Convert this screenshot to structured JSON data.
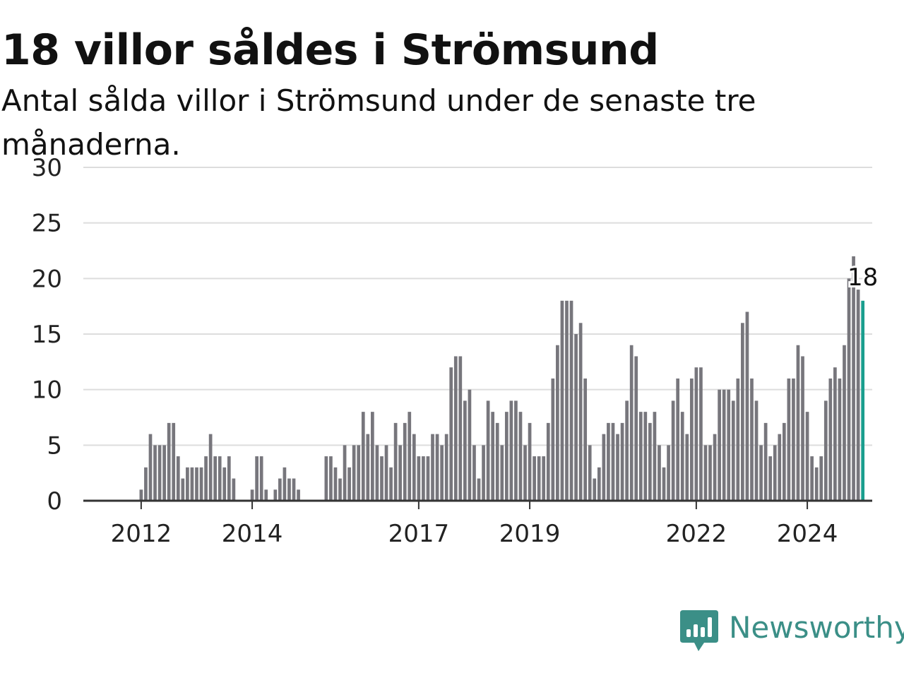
{
  "title": "18 villor såldes i Strömsund",
  "subtitle": "Antal sålda villor i Strömsund under de senaste tre månaderna.",
  "brand": {
    "name": "Newsworthy",
    "icon": "newsworthy-logo-icon",
    "color": "#3b8f87"
  },
  "colors": {
    "bar": "#77767c",
    "highlight": "#1a9e8e",
    "grid": "#dddddd",
    "axis": "#333333"
  },
  "chart_data": {
    "type": "bar",
    "x_start": "2011-01",
    "frequency": "monthly",
    "values": [
      0,
      0,
      0,
      0,
      0,
      0,
      0,
      0,
      0,
      0,
      0,
      0,
      1,
      3,
      6,
      5,
      5,
      5,
      7,
      7,
      4,
      2,
      3,
      3,
      3,
      3,
      4,
      6,
      4,
      4,
      3,
      4,
      2,
      0,
      0,
      0,
      1,
      4,
      4,
      1,
      0,
      1,
      2,
      3,
      2,
      2,
      1,
      0,
      0,
      0,
      0,
      0,
      4,
      4,
      3,
      2,
      5,
      3,
      5,
      5,
      8,
      6,
      8,
      5,
      4,
      5,
      3,
      7,
      5,
      7,
      8,
      6,
      4,
      4,
      4,
      6,
      6,
      5,
      6,
      12,
      13,
      13,
      9,
      10,
      5,
      2,
      5,
      9,
      8,
      7,
      5,
      8,
      9,
      9,
      8,
      5,
      7,
      4,
      4,
      4,
      7,
      11,
      14,
      18,
      18,
      18,
      15,
      16,
      11,
      5,
      2,
      3,
      6,
      7,
      7,
      6,
      7,
      9,
      14,
      13,
      8,
      8,
      7,
      8,
      5,
      3,
      5,
      9,
      11,
      8,
      6,
      11,
      12,
      12,
      5,
      5,
      6,
      10,
      10,
      10,
      9,
      11,
      16,
      17,
      11,
      9,
      5,
      7,
      4,
      5,
      6,
      7,
      11,
      11,
      14,
      13,
      8,
      4,
      3,
      4,
      9,
      11,
      12,
      11,
      14,
      20,
      22,
      19,
      18
    ],
    "highlight_last": true,
    "annotation": {
      "label": "18"
    },
    "y_ticks": [
      "0",
      "5",
      "10",
      "15",
      "20",
      "25",
      "30"
    ],
    "ylim": [
      0,
      30
    ],
    "x_ticks": [
      {
        "label": "2012",
        "year": 2012
      },
      {
        "label": "2014",
        "year": 2014
      },
      {
        "label": "2017",
        "year": 2017
      },
      {
        "label": "2019",
        "year": 2019
      },
      {
        "label": "2022",
        "year": 2022
      },
      {
        "label": "2024",
        "year": 2024
      }
    ],
    "grid": true,
    "legend": "none",
    "xlabel": "",
    "ylabel": ""
  }
}
